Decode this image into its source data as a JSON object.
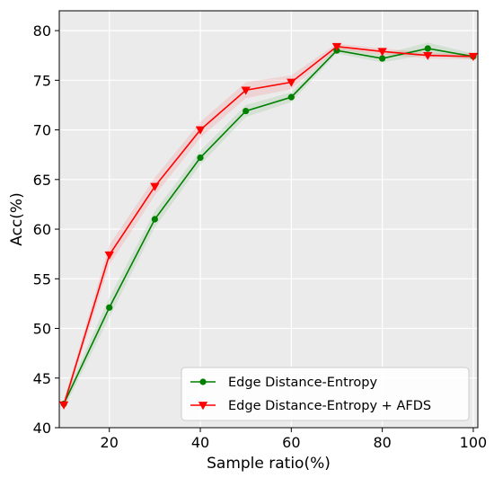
{
  "chart_data": {
    "type": "line",
    "title": "",
    "xlabel": "Sample ratio(%)",
    "ylabel": "Acc(%)",
    "xlim": [
      9,
      101
    ],
    "ylim": [
      40,
      82
    ],
    "xticks": [
      20,
      40,
      60,
      80,
      100
    ],
    "yticks": [
      40,
      45,
      50,
      55,
      60,
      65,
      70,
      75,
      80
    ],
    "grid": true,
    "background": "#ebebeb",
    "legend_position": "lower-right",
    "x": [
      10,
      20,
      30,
      40,
      50,
      60,
      70,
      80,
      90,
      100
    ],
    "series": [
      {
        "name": "Edge Distance-Entropy",
        "color": "#008000",
        "marker": "circle",
        "values": [
          42.4,
          52.1,
          61.0,
          67.2,
          71.9,
          73.3,
          78.0,
          77.2,
          78.2,
          77.4
        ],
        "band": [
          0.5,
          1.0,
          0.8,
          0.7,
          0.6,
          0.5,
          0.3,
          0.4,
          0.6,
          0.3
        ]
      },
      {
        "name": "Edge Distance-Entropy + AFDS",
        "color": "#ff0000",
        "marker": "triangle-down",
        "values": [
          42.3,
          57.4,
          64.3,
          70.0,
          74.0,
          74.8,
          78.4,
          77.9,
          77.5,
          77.4
        ],
        "band": [
          0.4,
          1.0,
          0.9,
          0.8,
          0.8,
          0.7,
          0.3,
          0.3,
          0.3,
          0.3
        ]
      }
    ]
  }
}
